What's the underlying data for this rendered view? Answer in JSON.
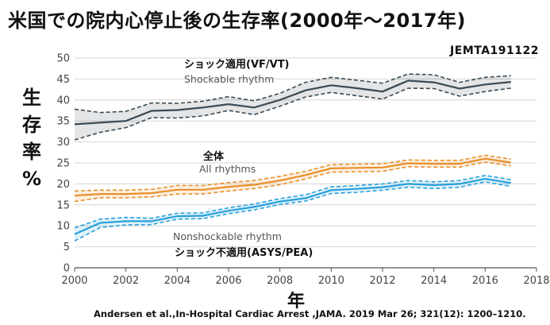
{
  "title": "米国での院内心停止後の生存率(2000年～2017年)",
  "code": "JEMTA191122",
  "ylabel_chars": [
    "生",
    "存",
    "率",
    "%"
  ],
  "xlabel": "年",
  "citation": "Andersen et al.,In-Hospital Cardiac Arrest ,JAMA. 2019 Mar 26; 321(12): 1200–1210.",
  "chart_data": {
    "type": "line",
    "title": "米国での院内心停止後の生存率(2000年～2017年)",
    "xlabel": "年",
    "ylabel": "生存率%",
    "xlim": [
      2000,
      2018
    ],
    "ylim": [
      0,
      50
    ],
    "xticks": [
      2000,
      2002,
      2004,
      2006,
      2008,
      2010,
      2012,
      2014,
      2016,
      2018
    ],
    "yticks": [
      0,
      5,
      10,
      15,
      20,
      25,
      30,
      35,
      40,
      45,
      50
    ],
    "grid": true,
    "x": [
      2000,
      2001,
      2002,
      2003,
      2004,
      2005,
      2006,
      2007,
      2008,
      2009,
      2010,
      2011,
      2012,
      2013,
      2014,
      2015,
      2016,
      2017
    ],
    "series": [
      {
        "name": "Shockable rhythm",
        "label_jp": "ショック適用(VF/VT)",
        "color": "#3a4a55",
        "values": [
          34.2,
          34.6,
          35.0,
          37.4,
          37.6,
          38.2,
          39.0,
          38.2,
          40.0,
          42.3,
          43.5,
          42.8,
          42.0,
          44.6,
          44.2,
          42.7,
          43.7,
          44.3
        ],
        "ci_upper": [
          37.8,
          37.0,
          37.3,
          39.3,
          39.2,
          39.7,
          40.8,
          39.8,
          41.6,
          44.2,
          45.4,
          44.7,
          44.0,
          46.2,
          46.0,
          44.2,
          45.4,
          45.8
        ],
        "ci_lower": [
          30.5,
          32.3,
          33.4,
          35.8,
          35.7,
          36.2,
          37.5,
          36.5,
          38.5,
          40.7,
          41.8,
          41.0,
          40.2,
          42.8,
          42.7,
          40.9,
          42.0,
          42.8
        ]
      },
      {
        "name": "All rhythms",
        "label_jp": "全体",
        "color": "#e8902a",
        "values": [
          17.2,
          17.6,
          17.6,
          17.8,
          18.6,
          18.6,
          19.3,
          19.8,
          20.8,
          22.1,
          23.7,
          23.8,
          23.9,
          24.9,
          24.8,
          24.8,
          26.0,
          25.1
        ],
        "ci_upper": [
          18.3,
          18.5,
          18.5,
          18.7,
          19.6,
          19.6,
          20.3,
          20.8,
          21.8,
          23.0,
          24.6,
          24.7,
          24.8,
          25.7,
          25.6,
          25.6,
          26.8,
          25.9
        ],
        "ci_lower": [
          15.8,
          16.7,
          16.7,
          16.9,
          17.6,
          17.6,
          18.3,
          18.9,
          19.8,
          21.2,
          22.8,
          22.9,
          23.0,
          24.1,
          24.0,
          24.0,
          25.2,
          24.3
        ]
      },
      {
        "name": "Nonshockable rhythm",
        "label_jp": "ショック不適用(ASYS/PEA)",
        "color": "#29a0dc",
        "values": [
          8.0,
          10.7,
          11.1,
          11.1,
          12.3,
          12.4,
          13.6,
          14.5,
          15.8,
          16.6,
          18.5,
          18.8,
          19.2,
          20.0,
          19.7,
          20.0,
          21.2,
          20.2
        ],
        "ci_upper": [
          9.5,
          11.6,
          12.0,
          11.8,
          13.0,
          13.1,
          14.3,
          15.2,
          16.5,
          17.4,
          19.3,
          19.6,
          20.0,
          20.8,
          20.5,
          20.8,
          22.0,
          21.0
        ],
        "ci_lower": [
          6.4,
          9.6,
          10.2,
          10.3,
          11.6,
          11.7,
          12.9,
          13.8,
          15.1,
          15.9,
          17.7,
          18.0,
          18.5,
          19.2,
          18.9,
          19.2,
          20.5,
          19.4
        ]
      }
    ]
  }
}
